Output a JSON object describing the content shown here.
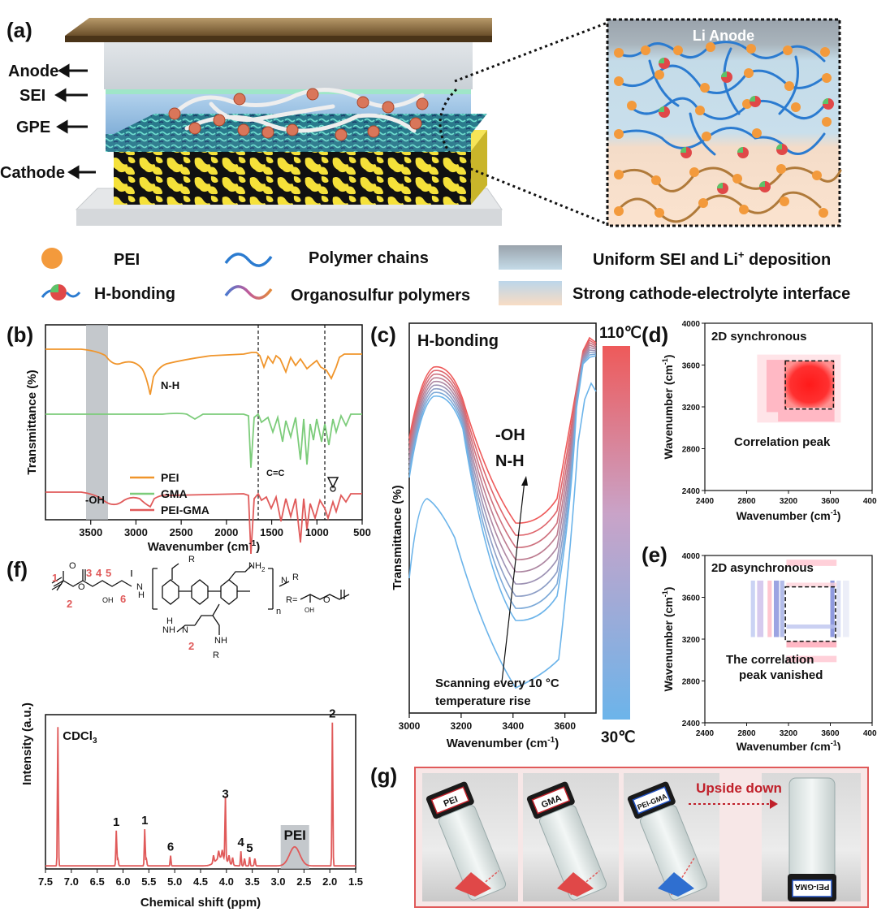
{
  "panels": {
    "a": "(a)",
    "b": "(b)",
    "c": "(c)",
    "d": "(d)",
    "e": "(e)",
    "f": "(f)",
    "g": "(g)"
  },
  "panel_a": {
    "layers": [
      "Anode",
      "SEI",
      "GPE",
      "Cathode"
    ],
    "inset_title": "Li Anode",
    "legend": {
      "pei": "PEI",
      "hbond": "H-bonding",
      "polymer": "Polymer chains",
      "organosulfur": "Organosulfur polymers",
      "sei": "Uniform SEI and Li",
      "sei_sup": "+",
      "sei_tail": " deposition",
      "cathode_int": "Strong cathode-electrolyte interface"
    },
    "colors": {
      "pei": "#f39a3c",
      "chain": "#2b7bd0",
      "organosulfur": "#e07a3a",
      "cathode_yellow": "#f5e13a"
    }
  },
  "chart_data": [
    {
      "id": "b",
      "type": "line",
      "xlabel": "Wavenumber (cm",
      "xlabel_sup": "-1",
      "xlabel_tail": ")",
      "ylabel": "Transmittance (%)",
      "xlim": [
        4000,
        500
      ],
      "xticks": [
        "3500",
        "3000",
        "2500",
        "2000",
        "1500",
        "1000",
        "500"
      ],
      "xtick_values": [
        3500,
        3000,
        2500,
        2000,
        1500,
        1000,
        500
      ],
      "annotations": {
        "nh": "N-H",
        "cc": "C=C",
        "oh": "-OH"
      },
      "series": [
        {
          "name": "PEI",
          "color": "#f0952b"
        },
        {
          "name": "GMA",
          "color": "#7ccc7a"
        },
        {
          "name": "PEI-GMA",
          "color": "#e05a5a"
        }
      ]
    },
    {
      "id": "c",
      "type": "line",
      "title": "H-bonding",
      "xlabel": "Wavenumber (cm",
      "xlabel_sup": "-1",
      "xlabel_tail": ")",
      "ylabel": "Transmittance (%)",
      "xlim": [
        3000,
        3720
      ],
      "xticks": [
        "3000",
        "3200",
        "3400",
        "3600"
      ],
      "xtick_values": [
        3000,
        3200,
        3400,
        3600
      ],
      "annotations": {
        "oh": "-OH",
        "nh": "N-H",
        "scan1": "Scanning every 10 °C",
        "scan2": "temperature rise"
      },
      "colorbar": {
        "max": "110℃",
        "min": "30℃",
        "max_color": "#ee5a5a",
        "min_color": "#6cb4ea"
      },
      "series_count": 9
    },
    {
      "id": "d",
      "type": "heatmap",
      "title": "2D synchronous",
      "note": "Correlation peak",
      "xlabel": "Wavenumber (cm",
      "xlabel_sup": "-1",
      "xlabel_tail": ")",
      "ylabel": "Wavenumber (cm",
      "ylabel_sup": "-1",
      "ylabel_tail": ")",
      "xlim": [
        2400,
        4000
      ],
      "ylim": [
        2400,
        4000
      ],
      "xticks": [
        "2400",
        "2800",
        "3200",
        "3600",
        "4000"
      ],
      "yticks": [
        "2400",
        "2800",
        "3200",
        "3600",
        "4000"
      ],
      "peak": {
        "x": [
          3170,
          3630
        ],
        "y": [
          3180,
          3640
        ]
      }
    },
    {
      "id": "e",
      "type": "heatmap",
      "title": "2D asynchronous",
      "note1": "The correlation",
      "note2": "peak vanished",
      "xlabel": "Wavenumber (cm",
      "xlabel_sup": "-1",
      "xlabel_tail": ")",
      "ylabel": "Wavenumber (cm",
      "ylabel_sup": "-1",
      "ylabel_tail": ")",
      "xlim": [
        2400,
        4000
      ],
      "ylim": [
        2400,
        4000
      ],
      "xticks": [
        "2400",
        "2800",
        "3200",
        "3600",
        "4000"
      ],
      "yticks": [
        "2400",
        "2800",
        "3200",
        "3600",
        "4000"
      ],
      "box": {
        "x": [
          3170,
          3650
        ],
        "y": [
          3180,
          3700
        ]
      }
    },
    {
      "id": "f",
      "type": "line",
      "xlabel": "Chemical shift (ppm)",
      "ylabel": "Intensity (a.u.)",
      "xlim": [
        7.5,
        1.5
      ],
      "xticks": [
        "7.5",
        "7.0",
        "6.5",
        "6.0",
        "5.5",
        "5.0",
        "4.5",
        "4.0",
        "3.5",
        "3.0",
        "2.5",
        "2.0",
        "1.5"
      ],
      "xtick_values": [
        7.5,
        7.0,
        6.5,
        6.0,
        5.5,
        5.0,
        4.5,
        4.0,
        3.5,
        3.0,
        2.5,
        2.0,
        1.5
      ],
      "peaks": [
        {
          "ppm": 7.26,
          "height": 0.95,
          "label": "CDCl",
          "label_sub": "3"
        },
        {
          "ppm": 6.13,
          "height": 0.24,
          "label": "1"
        },
        {
          "ppm": 5.58,
          "height": 0.25,
          "label": "1"
        },
        {
          "ppm": 5.08,
          "height": 0.07,
          "label": "6"
        },
        {
          "ppm": 4.02,
          "height": 0.43,
          "label": "3"
        },
        {
          "ppm": 3.72,
          "height": 0.1,
          "label": "4"
        },
        {
          "ppm": 3.55,
          "height": 0.06,
          "label": "5"
        },
        {
          "ppm": 1.95,
          "height": 0.98,
          "label": "2"
        }
      ],
      "band_label": "PEI",
      "band": [
        2.95,
        2.4
      ],
      "structure": {
        "n1": "1",
        "n2": "2",
        "n3": "3",
        "n4": "4",
        "n5": "5",
        "n6": "6",
        "n2b": "2",
        "nh2a": "NH",
        "nh2b": "H",
        "nh2sub": "2",
        "r": "R",
        "rdef": "R=",
        "n": "n",
        "oh": "OH",
        "o": "O",
        "h": "H",
        "n_atom": "N",
        "nh": "NH"
      }
    }
  ],
  "panel_g": {
    "vials": [
      "PEI",
      "GMA",
      "PEI-GMA",
      "PEI-GMA"
    ],
    "upside": "Upside down"
  }
}
